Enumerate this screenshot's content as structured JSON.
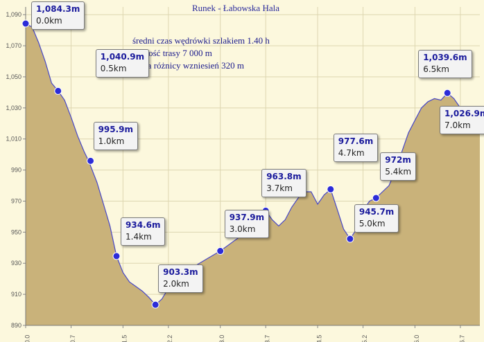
{
  "chart_data": {
    "type": "area",
    "title": "Runek - Łabowska Hala",
    "annotations": [
      "średni czas wędrówki szlakiem 1.40 h",
      "długość trasy 7 000 m",
      "suma różnicy wzniesień 320 m"
    ],
    "xlim": [
      0,
      7.0
    ],
    "ylim": [
      890,
      1095
    ],
    "x_ticks": [
      "0.0",
      "0.7",
      "1.5",
      "2.2",
      "3.0",
      "3.7",
      "4.5",
      "5.2",
      "6.0",
      "6.7"
    ],
    "y_ticks": [
      "890",
      "910",
      "930",
      "950",
      "970",
      "990",
      "1,010",
      "1,030",
      "1,050",
      "1,070",
      "1,090"
    ],
    "grid": true,
    "colors": {
      "fill": "#c9b27a",
      "line": "#4646c8",
      "marker": "#2c2cd8",
      "background": "#fcf8dd",
      "grid": "#ddd6b0"
    },
    "profile": [
      [
        0.0,
        1084.3
      ],
      [
        0.1,
        1082
      ],
      [
        0.2,
        1072
      ],
      [
        0.3,
        1060
      ],
      [
        0.4,
        1046
      ],
      [
        0.5,
        1040.9
      ],
      [
        0.6,
        1035
      ],
      [
        0.7,
        1024
      ],
      [
        0.8,
        1012
      ],
      [
        0.9,
        1002
      ],
      [
        0.97,
        995.9
      ],
      [
        1.1,
        982
      ],
      [
        1.2,
        968
      ],
      [
        1.3,
        954
      ],
      [
        1.4,
        934.6
      ],
      [
        1.5,
        924
      ],
      [
        1.6,
        918
      ],
      [
        1.7,
        915
      ],
      [
        1.8,
        912
      ],
      [
        1.9,
        908
      ],
      [
        2.0,
        903.3
      ],
      [
        2.1,
        907
      ],
      [
        2.2,
        914
      ],
      [
        2.4,
        922
      ],
      [
        2.6,
        928
      ],
      [
        2.8,
        933
      ],
      [
        3.0,
        937.9
      ],
      [
        3.2,
        944
      ],
      [
        3.4,
        950
      ],
      [
        3.6,
        958
      ],
      [
        3.7,
        963.8
      ],
      [
        3.8,
        958
      ],
      [
        3.9,
        954
      ],
      [
        4.0,
        958
      ],
      [
        4.1,
        966
      ],
      [
        4.2,
        972
      ],
      [
        4.3,
        976
      ],
      [
        4.4,
        976
      ],
      [
        4.5,
        968
      ],
      [
        4.6,
        974
      ],
      [
        4.7,
        977.6
      ],
      [
        4.8,
        965
      ],
      [
        4.9,
        952
      ],
      [
        5.0,
        945.7
      ],
      [
        5.1,
        952
      ],
      [
        5.2,
        964
      ],
      [
        5.3,
        970
      ],
      [
        5.4,
        972
      ],
      [
        5.5,
        976
      ],
      [
        5.6,
        980
      ],
      [
        5.7,
        990
      ],
      [
        5.8,
        1002
      ],
      [
        5.9,
        1014
      ],
      [
        6.0,
        1022
      ],
      [
        6.1,
        1030
      ],
      [
        6.2,
        1034
      ],
      [
        6.3,
        1036
      ],
      [
        6.4,
        1035
      ],
      [
        6.5,
        1039.6
      ],
      [
        6.6,
        1036
      ],
      [
        6.7,
        1030
      ],
      [
        6.8,
        1026
      ],
      [
        6.9,
        1025
      ],
      [
        7.0,
        1026.9
      ]
    ],
    "points": [
      {
        "x": 0.0,
        "y": 1084.3,
        "elev": "1,084.3m",
        "dist": "0.0km"
      },
      {
        "x": 0.5,
        "y": 1040.9,
        "elev": "1,040.9m",
        "dist": "0.5km"
      },
      {
        "x": 1.0,
        "y": 995.9,
        "elev": "995.9m",
        "dist": "1.0km"
      },
      {
        "x": 1.4,
        "y": 934.6,
        "elev": "934.6m",
        "dist": "1.4km"
      },
      {
        "x": 2.0,
        "y": 903.3,
        "elev": "903.3m",
        "dist": "2.0km"
      },
      {
        "x": 3.0,
        "y": 937.9,
        "elev": "937.9m",
        "dist": "3.0km"
      },
      {
        "x": 3.7,
        "y": 963.8,
        "elev": "963.8m",
        "dist": "3.7km"
      },
      {
        "x": 4.7,
        "y": 977.6,
        "elev": "977.6m",
        "dist": "4.7km"
      },
      {
        "x": 5.0,
        "y": 945.7,
        "elev": "945.7m",
        "dist": "5.0km"
      },
      {
        "x": 5.4,
        "y": 972,
        "elev": "972m",
        "dist": "5.4km"
      },
      {
        "x": 6.5,
        "y": 1039.6,
        "elev": "1,039.6m",
        "dist": "6.5km"
      },
      {
        "x": 7.0,
        "y": 1026.9,
        "elev": "1,026.9m",
        "dist": "7.0km"
      }
    ]
  }
}
